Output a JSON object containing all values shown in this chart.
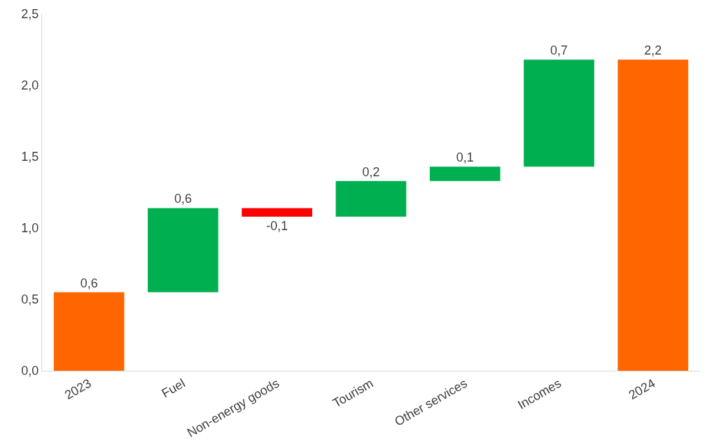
{
  "chart_data": {
    "type": "bar",
    "categories": [
      "2023",
      "Fuel",
      "Non-energy goods",
      "Tourism",
      "Other services",
      "Incomes",
      "2024"
    ],
    "values": [
      0.55,
      0.59,
      -0.06,
      0.25,
      0.1,
      0.75,
      2.18
    ],
    "base": [
      0,
      0.55,
      1.14,
      1.08,
      1.33,
      1.43,
      0
    ],
    "colors": [
      "#ff6600",
      "#00b050",
      "#ff0000",
      "#00b050",
      "#00b050",
      "#00b050",
      "#ff6600"
    ],
    "value_labels": [
      "0,6",
      "0,6",
      "-0,1",
      "0,2",
      "0,1",
      "0,7",
      "2,2"
    ],
    "ylim": [
      0,
      2.5
    ],
    "yticks": [
      {
        "value": 0,
        "label": "0,0"
      },
      {
        "value": 0.5,
        "label": "0,5"
      },
      {
        "value": 1,
        "label": "1,0"
      },
      {
        "value": 1.5,
        "label": "1,5"
      },
      {
        "value": 2,
        "label": "2,0"
      },
      {
        "value": 2.5,
        "label": "2,5"
      }
    ]
  }
}
